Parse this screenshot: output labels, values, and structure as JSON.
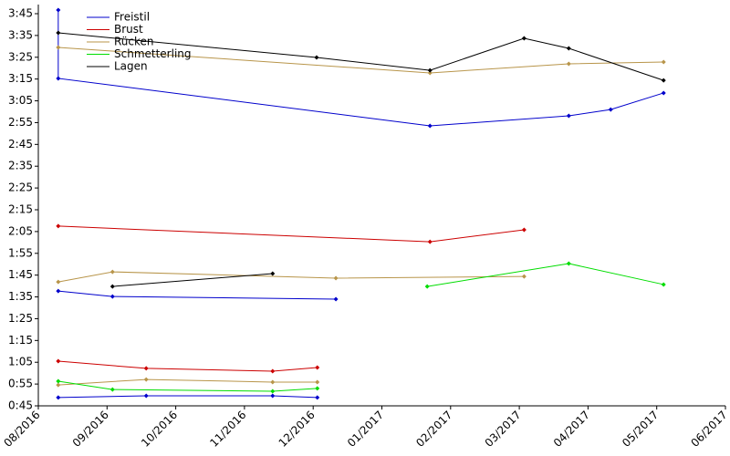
{
  "chart_data": {
    "type": "line",
    "xlim": [
      0,
      10
    ],
    "xticks": [
      {
        "value": 0,
        "label": "08/2016"
      },
      {
        "value": 1,
        "label": "09/2016"
      },
      {
        "value": 2,
        "label": "10/2016"
      },
      {
        "value": 3,
        "label": "11/2016"
      },
      {
        "value": 4,
        "label": "12/2016"
      },
      {
        "value": 5,
        "label": "01/2017"
      },
      {
        "value": 6,
        "label": "02/2017"
      },
      {
        "value": 7,
        "label": "03/2017"
      },
      {
        "value": 8,
        "label": "04/2017"
      },
      {
        "value": 9,
        "label": "05/2017"
      },
      {
        "value": 10,
        "label": "06/2017"
      }
    ],
    "ylim": [
      45,
      225
    ],
    "yticks": [
      {
        "value": 45,
        "label": "0:45"
      },
      {
        "value": 55,
        "label": "0:55"
      },
      {
        "value": 65,
        "label": "1:05"
      },
      {
        "value": 75,
        "label": "1:15"
      },
      {
        "value": 85,
        "label": "1:25"
      },
      {
        "value": 95,
        "label": "1:35"
      },
      {
        "value": 105,
        "label": "1:45"
      },
      {
        "value": 115,
        "label": "1:55"
      },
      {
        "value": 125,
        "label": "2:05"
      },
      {
        "value": 135,
        "label": "2:15"
      },
      {
        "value": 145,
        "label": "2:25"
      },
      {
        "value": 155,
        "label": "2:35"
      },
      {
        "value": 165,
        "label": "2:45"
      },
      {
        "value": 175,
        "label": "2:55"
      },
      {
        "value": 185,
        "label": "3:05"
      },
      {
        "value": 195,
        "label": "3:15"
      },
      {
        "value": 205,
        "label": "3:25"
      },
      {
        "value": 215,
        "label": "3:35"
      },
      {
        "value": 225,
        "label": "3:45"
      }
    ],
    "legend": "upper left",
    "series": [
      {
        "name": "Freistil",
        "color": "#0000cc",
        "x": [
          0.29,
          0.29,
          5.7,
          7.72,
          8.33,
          9.1,
          null,
          0.29,
          1.08,
          4.33,
          null,
          0.29,
          1.57,
          3.41,
          4.06
        ],
        "values": [
          226.7,
          195.3,
          173.5,
          178.1,
          181.0,
          188.6,
          null,
          97.7,
          95.2,
          94.0,
          null,
          48.8,
          49.6,
          49.6,
          48.8
        ]
      },
      {
        "name": "Brust",
        "color": "#cc0000",
        "x": [
          0.29,
          5.7,
          7.07,
          null,
          0.29,
          1.57,
          3.41,
          4.06
        ],
        "values": [
          127.5,
          120.3,
          125.8,
          null,
          65.5,
          62.2,
          60.9,
          62.6
        ]
      },
      {
        "name": "Rücken",
        "color": "#b8954a",
        "x": [
          0.29,
          5.7,
          7.72,
          9.1,
          null,
          0.29,
          1.08,
          4.33,
          7.07,
          null,
          0.29,
          1.57,
          3.41,
          4.06
        ],
        "values": [
          209.5,
          197.8,
          202.0,
          202.8,
          null,
          101.9,
          106.5,
          103.6,
          104.4,
          null,
          54.6,
          57.1,
          55.9,
          55.9
        ]
      },
      {
        "name": "Schmetterling",
        "color": "#00dd00",
        "x": [
          0.29,
          1.08,
          3.41,
          4.06,
          null,
          5.66,
          7.72,
          9.1
        ],
        "values": [
          56.3,
          52.5,
          51.7,
          53.0,
          null,
          99.8,
          110.3,
          100.7
        ]
      },
      {
        "name": "Lagen",
        "color": "#000000",
        "x": [
          0.29,
          4.05,
          5.7,
          7.07,
          7.72,
          9.1,
          null,
          1.08,
          3.41
        ],
        "values": [
          216.2,
          204.9,
          199.0,
          213.7,
          209.1,
          194.4,
          null,
          99.8,
          105.7
        ]
      }
    ]
  }
}
